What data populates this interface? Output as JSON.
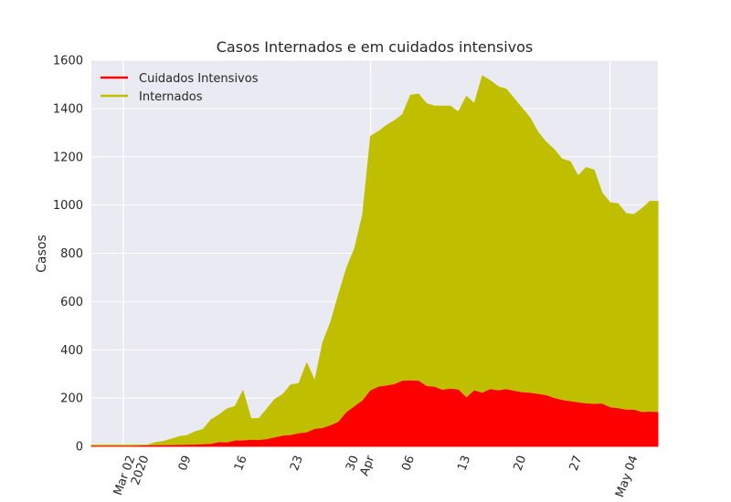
{
  "chart_data": {
    "type": "area",
    "title": "Casos Internados e em cuidados intensivos",
    "xlabel": "",
    "ylabel": "Casos",
    "ylim": [
      0,
      1600
    ],
    "xlim": [
      "2020-02-26",
      "2020-05-07"
    ],
    "grid": true,
    "legend_position": "top-left",
    "y_ticks": [
      "0",
      "200",
      "400",
      "600",
      "800",
      "1000",
      "1200",
      "1400",
      "1600"
    ],
    "x_ticks": [
      {
        "date": "2020-03-02",
        "label": "Mar 02",
        "sublabel": "2020"
      },
      {
        "date": "2020-03-09",
        "label": "09"
      },
      {
        "date": "2020-03-16",
        "label": "16"
      },
      {
        "date": "2020-03-23",
        "label": "23"
      },
      {
        "date": "2020-03-30",
        "label": "30"
      },
      {
        "date": "2020-04-01",
        "label": "Apr"
      },
      {
        "date": "2020-04-06",
        "label": "06"
      },
      {
        "date": "2020-04-13",
        "label": "13"
      },
      {
        "date": "2020-04-20",
        "label": "20"
      },
      {
        "date": "2020-04-27",
        "label": "27"
      },
      {
        "date": "2020-05-04",
        "label": "May 04"
      }
    ],
    "major_gridline_dates": [
      "2020-03-01",
      "2020-04-01",
      "2020-05-01"
    ],
    "series": [
      {
        "name": "Cuidados Intensivos",
        "color": "#ff0000",
        "x": [
          "2020-02-26",
          "2020-03-02",
          "2020-03-04",
          "2020-03-06",
          "2020-03-08",
          "2020-03-10",
          "2020-03-12",
          "2020-03-13",
          "2020-03-14",
          "2020-03-15",
          "2020-03-16",
          "2020-03-17",
          "2020-03-18",
          "2020-03-19",
          "2020-03-20",
          "2020-03-21",
          "2020-03-22",
          "2020-03-23",
          "2020-03-24",
          "2020-03-25",
          "2020-03-26",
          "2020-03-27",
          "2020-03-28",
          "2020-03-29",
          "2020-03-30",
          "2020-03-31",
          "2020-04-01",
          "2020-04-02",
          "2020-04-03",
          "2020-04-04",
          "2020-04-05",
          "2020-04-06",
          "2020-04-07",
          "2020-04-08",
          "2020-04-09",
          "2020-04-10",
          "2020-04-11",
          "2020-04-12",
          "2020-04-13",
          "2020-04-14",
          "2020-04-15",
          "2020-04-16",
          "2020-04-17",
          "2020-04-18",
          "2020-04-19",
          "2020-04-20",
          "2020-04-21",
          "2020-04-22",
          "2020-04-23",
          "2020-04-24",
          "2020-04-25",
          "2020-04-26",
          "2020-04-27",
          "2020-04-28",
          "2020-04-29",
          "2020-04-30",
          "2020-05-01",
          "2020-05-02",
          "2020-05-03",
          "2020-05-04",
          "2020-05-05",
          "2020-05-06",
          "2020-05-07"
        ],
        "values": [
          0,
          0,
          2,
          3,
          4,
          5,
          8,
          15,
          14,
          22,
          22,
          25,
          24,
          28,
          35,
          42,
          45,
          52,
          56,
          70,
          74,
          85,
          100,
          140,
          164,
          188,
          230,
          245,
          250,
          256,
          270,
          271,
          270,
          248,
          245,
          232,
          237,
          233,
          200,
          230,
          220,
          235,
          230,
          235,
          228,
          222,
          220,
          215,
          210,
          198,
          190,
          185,
          180,
          176,
          174,
          175,
          160,
          156,
          150,
          150,
          140,
          142,
          140
        ]
      },
      {
        "name": "Internados",
        "color": "#bfbf00",
        "x": [
          "2020-02-26",
          "2020-03-02",
          "2020-03-04",
          "2020-03-05",
          "2020-03-06",
          "2020-03-07",
          "2020-03-08",
          "2020-03-09",
          "2020-03-10",
          "2020-03-11",
          "2020-03-12",
          "2020-03-13",
          "2020-03-14",
          "2020-03-15",
          "2020-03-16",
          "2020-03-17",
          "2020-03-18",
          "2020-03-19",
          "2020-03-20",
          "2020-03-21",
          "2020-03-22",
          "2020-03-23",
          "2020-03-24",
          "2020-03-25",
          "2020-03-26",
          "2020-03-27",
          "2020-03-28",
          "2020-03-29",
          "2020-03-30",
          "2020-03-31",
          "2020-04-01",
          "2020-04-02",
          "2020-04-03",
          "2020-04-04",
          "2020-04-05",
          "2020-04-06",
          "2020-04-07",
          "2020-04-08",
          "2020-04-09",
          "2020-04-10",
          "2020-04-11",
          "2020-04-12",
          "2020-04-13",
          "2020-04-14",
          "2020-04-15",
          "2020-04-16",
          "2020-04-17",
          "2020-04-18",
          "2020-04-19",
          "2020-04-20",
          "2020-04-21",
          "2020-04-22",
          "2020-04-23",
          "2020-04-24",
          "2020-04-25",
          "2020-04-26",
          "2020-04-27",
          "2020-04-28",
          "2020-04-29",
          "2020-04-30",
          "2020-05-01",
          "2020-05-02",
          "2020-05-03",
          "2020-05-04",
          "2020-05-05",
          "2020-05-06",
          "2020-05-07"
        ],
        "values": [
          5,
          5,
          5,
          15,
          20,
          30,
          40,
          45,
          60,
          70,
          110,
          130,
          155,
          165,
          230,
          115,
          115,
          155,
          195,
          215,
          255,
          260,
          345,
          270,
          430,
          515,
          630,
          740,
          820,
          960,
          1285,
          1305,
          1330,
          1350,
          1375,
          1455,
          1460,
          1420,
          1410,
          1410,
          1410,
          1385,
          1450,
          1420,
          1535,
          1515,
          1490,
          1480,
          1440,
          1400,
          1360,
          1300,
          1260,
          1230,
          1190,
          1180,
          1120,
          1155,
          1145,
          1050,
          1010,
          1005,
          965,
          960,
          985,
          1015,
          1015
        ]
      }
    ]
  }
}
